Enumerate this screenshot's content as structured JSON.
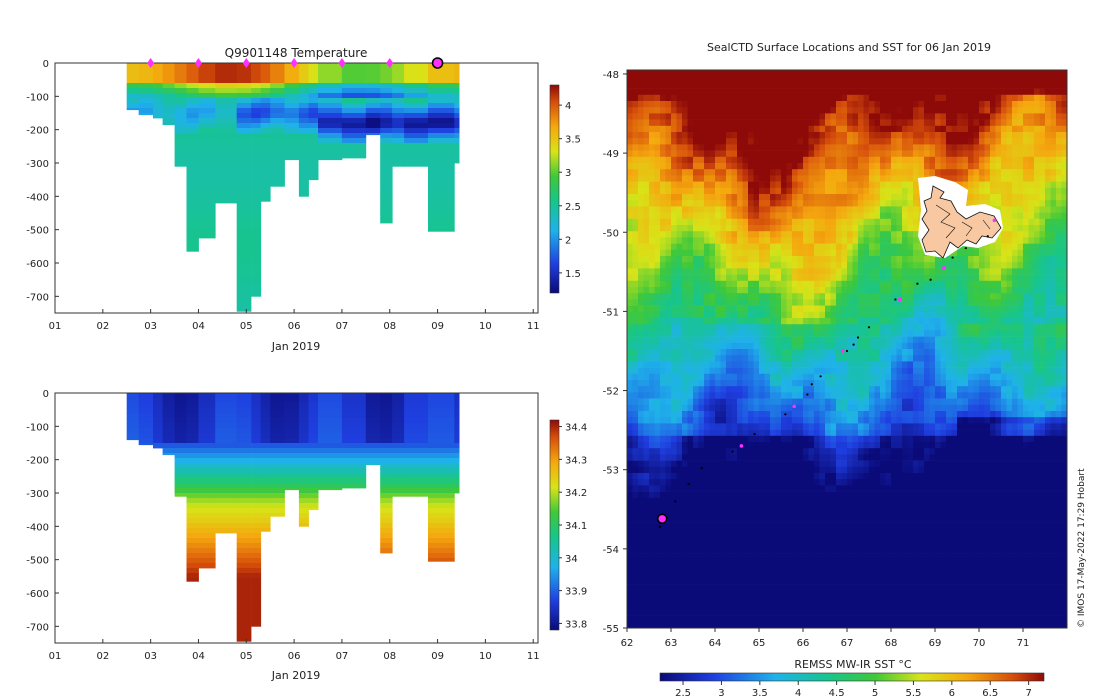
{
  "chart_data": [
    {
      "type": "heatmap",
      "name": "temperature-section",
      "title": "Q9901148  Temperature",
      "xlabel": "Jan 2019",
      "ylabel": "",
      "xlim": [
        1,
        11.1
      ],
      "ylim": [
        0,
        -750
      ],
      "xticks": [
        "01",
        "02",
        "03",
        "04",
        "05",
        "06",
        "07",
        "08",
        "09",
        "10",
        "11"
      ],
      "yticks": [
        "0",
        "-100",
        "-200",
        "-300",
        "-400",
        "-500",
        "-600",
        "-700"
      ],
      "colorbar": {
        "min": 1.2,
        "max": 4.3,
        "ticks": [
          "1.5",
          "2",
          "2.5",
          "3",
          "3.5",
          "4"
        ]
      },
      "profile_markers_days": [
        3,
        4,
        5,
        6,
        7,
        8
      ],
      "current_profile_day": 9,
      "profiles": [
        {
          "x0": 2.5,
          "x1": 2.75,
          "depth": 140
        },
        {
          "x0": 2.75,
          "x1": 3.05,
          "depth": 155
        },
        {
          "x0": 3.05,
          "x1": 3.25,
          "depth": 165
        },
        {
          "x0": 3.25,
          "x1": 3.5,
          "depth": 185
        },
        {
          "x0": 3.5,
          "x1": 3.75,
          "depth": 310
        },
        {
          "x0": 3.75,
          "x1": 4.0,
          "depth": 565
        },
        {
          "x0": 4.0,
          "x1": 4.35,
          "depth": 525
        },
        {
          "x0": 4.35,
          "x1": 4.8,
          "depth": 420
        },
        {
          "x0": 4.8,
          "x1": 5.1,
          "depth": 745
        },
        {
          "x0": 5.1,
          "x1": 5.3,
          "depth": 700
        },
        {
          "x0": 5.3,
          "x1": 5.5,
          "depth": 415
        },
        {
          "x0": 5.5,
          "x1": 5.8,
          "depth": 370
        },
        {
          "x0": 5.8,
          "x1": 6.1,
          "depth": 290
        },
        {
          "x0": 6.1,
          "x1": 6.3,
          "depth": 400
        },
        {
          "x0": 6.3,
          "x1": 6.5,
          "depth": 350
        },
        {
          "x0": 6.5,
          "x1": 7.0,
          "depth": 290
        },
        {
          "x0": 7.0,
          "x1": 7.5,
          "depth": 285
        },
        {
          "x0": 7.5,
          "x1": 7.8,
          "depth": 215
        },
        {
          "x0": 7.8,
          "x1": 8.05,
          "depth": 480
        },
        {
          "x0": 8.05,
          "x1": 8.3,
          "depth": 310
        },
        {
          "x0": 8.3,
          "x1": 8.8,
          "depth": 310
        },
        {
          "x0": 8.8,
          "x1": 9.35,
          "depth": 505
        },
        {
          "x0": 9.35,
          "x1": 9.45,
          "depth": 300
        }
      ]
    },
    {
      "type": "heatmap",
      "name": "salinity-section",
      "title": "",
      "xlabel": "Jan 2019",
      "ylabel": "",
      "xlim": [
        1,
        11.1
      ],
      "ylim": [
        0,
        -750
      ],
      "xticks": [
        "01",
        "02",
        "03",
        "04",
        "05",
        "06",
        "07",
        "08",
        "09",
        "10",
        "11"
      ],
      "yticks": [
        "0",
        "-100",
        "-200",
        "-300",
        "-400",
        "-500",
        "-600",
        "-700"
      ],
      "colorbar": {
        "min": 33.78,
        "max": 34.42,
        "ticks": [
          "33.8",
          "33.9",
          "34",
          "34.1",
          "34.2",
          "34.3",
          "34.4"
        ]
      }
    },
    {
      "type": "heatmap",
      "name": "sst-map",
      "title": "SealCTD Surface Locations and SST for 06 Jan 2019",
      "xlim": [
        62,
        72
      ],
      "ylim": [
        -55,
        -47.95
      ],
      "xticks": [
        "62",
        "63",
        "64",
        "65",
        "66",
        "67",
        "68",
        "69",
        "70",
        "71"
      ],
      "yticks": [
        "-48",
        "-49",
        "-50",
        "-51",
        "-52",
        "-53",
        "-54",
        "-55"
      ],
      "colorbar": {
        "label": "REMSS MW-IR SST °C",
        "min": 2.2,
        "max": 7.2,
        "ticks": [
          "2.5",
          "3",
          "3.5",
          "4",
          "4.5",
          "5",
          "5.5",
          "6",
          "6.5",
          "7"
        ]
      },
      "track": [
        [
          62.75,
          -53.72
        ],
        [
          63.1,
          -53.4
        ],
        [
          63.4,
          -53.18
        ],
        [
          63.7,
          -52.98
        ],
        [
          64.4,
          -52.77
        ],
        [
          64.6,
          -52.7
        ],
        [
          64.9,
          -52.55
        ],
        [
          65.6,
          -52.3
        ],
        [
          65.8,
          -52.2
        ],
        [
          66.1,
          -52.05
        ],
        [
          66.2,
          -51.92
        ],
        [
          66.4,
          -51.82
        ],
        [
          67.0,
          -51.5
        ],
        [
          67.15,
          -51.42
        ],
        [
          67.25,
          -51.33
        ],
        [
          67.5,
          -51.2
        ],
        [
          68.1,
          -50.85
        ],
        [
          68.6,
          -50.65
        ],
        [
          68.9,
          -50.6
        ],
        [
          69.2,
          -50.45
        ],
        [
          69.4,
          -50.32
        ],
        [
          69.7,
          -50.2
        ],
        [
          70.2,
          -50.05
        ],
        [
          70.35,
          -49.85
        ]
      ],
      "profile_markers": [
        [
          65.8,
          -52.2
        ],
        [
          66.9,
          -51.5
        ],
        [
          68.2,
          -50.85
        ],
        [
          69.2,
          -50.45
        ],
        [
          70.35,
          -49.85
        ],
        [
          64.6,
          -52.7
        ]
      ],
      "current_location": [
        62.8,
        -53.62
      ]
    }
  ],
  "credit": "© IMOS 17-May-2022 17:29 Hobart"
}
